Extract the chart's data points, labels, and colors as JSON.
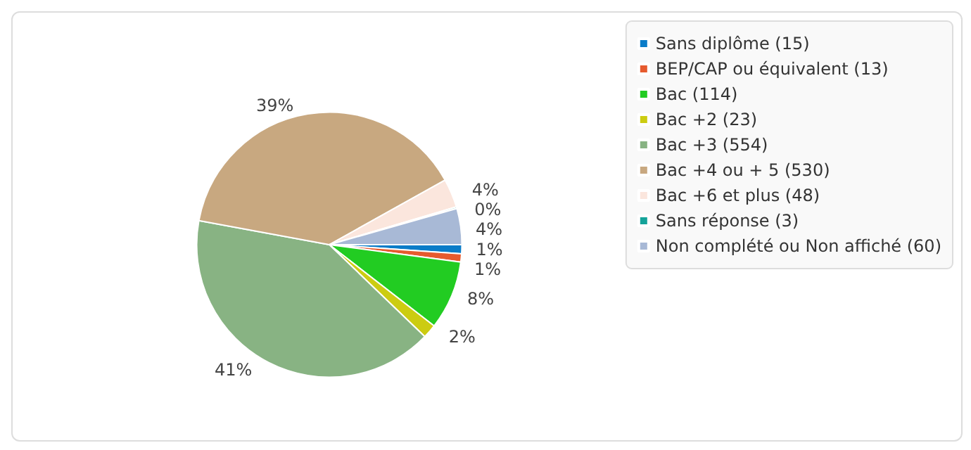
{
  "chart_data": {
    "type": "pie",
    "categories": [
      "Sans diplôme (15)",
      "BEP/CAP ou équivalent (13)",
      "Bac (114)",
      "Bac +2 (23)",
      "Bac +3 (554)",
      "Bac +4 ou + 5 (530)",
      "Bac +6 et plus (48)",
      "Sans réponse (3)",
      "Non complété ou Non affiché (60)"
    ],
    "values": [
      1.1,
      1.0,
      8.4,
      1.7,
      40.7,
      39.0,
      3.5,
      0.2,
      4.4
    ],
    "colors": [
      "#0a7cc8",
      "#e65a2e",
      "#22cc22",
      "#cccc11",
      "#88b383",
      "#c8a880",
      "#fbe6dd",
      "#14a39a",
      "#a8b9d6"
    ],
    "value_labels": [
      "1%",
      "1%",
      "8%",
      "2%",
      "41%",
      "39%",
      "4%",
      "0%",
      "4%"
    ],
    "legend": "top right"
  }
}
